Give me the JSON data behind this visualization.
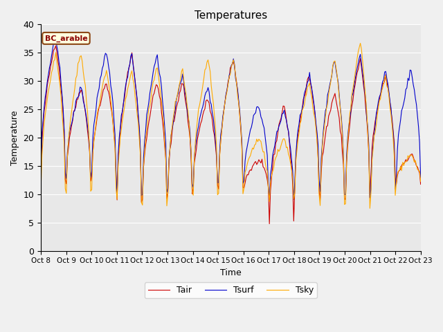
{
  "title": "Temperatures",
  "xlabel": "Time",
  "ylabel": "Temperature",
  "annotation": "BC_arable",
  "legend": [
    "Tair",
    "Tsurf",
    "Tsky"
  ],
  "line_colors": [
    "#cc0000",
    "#0000cc",
    "#ffaa00"
  ],
  "ylim": [
    0,
    40
  ],
  "bg_color": "#e8e8e8",
  "fig_bg": "#f0f0f0",
  "tick_labels": [
    "Oct 8",
    "Oct 9",
    "Oct 10",
    "Oct 11",
    "Oct 12",
    "Oct 13",
    "Oct 14",
    "Oct 15",
    "Oct 16",
    "Oct 17",
    "Oct 18",
    "Oct 19",
    "Oct 20",
    "Oct 21",
    "Oct 22",
    "Oct 23"
  ],
  "yticks": [
    0,
    5,
    10,
    15,
    20,
    25,
    30,
    35,
    40
  ],
  "n_days": 15,
  "pts_per_day": 24
}
